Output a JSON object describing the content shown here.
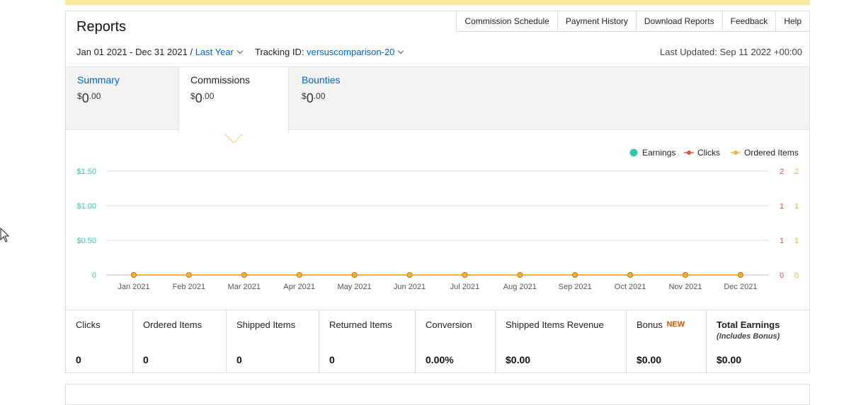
{
  "header": {
    "title": "Reports",
    "nav": [
      "Commission Schedule",
      "Payment History",
      "Download Reports",
      "Feedback",
      "Help"
    ]
  },
  "filters": {
    "date_range": "Jan 01 2021 - Dec 31 2021 /",
    "period": "Last Year",
    "tracking_label": "Tracking ID:",
    "tracking_id": "versuscomparison-20",
    "last_updated": "Last Updated: Sep 11 2022 +00:00"
  },
  "tabs": [
    {
      "label": "Summary",
      "currency": "$",
      "whole": "0",
      "cents": ".00"
    },
    {
      "label": "Commissions",
      "currency": "$",
      "whole": "0",
      "cents": ".00"
    },
    {
      "label": "Bounties",
      "currency": "$",
      "whole": "0",
      "cents": ".00"
    }
  ],
  "chart_data": {
    "type": "line",
    "categories": [
      "Jan 2021",
      "Feb 2021",
      "Mar 2021",
      "Apr 2021",
      "May 2021",
      "Jun 2021",
      "Jul 2021",
      "Aug 2021",
      "Sep 2021",
      "Oct 2021",
      "Nov 2021",
      "Dec 2021"
    ],
    "series": [
      {
        "name": "Earnings",
        "values": [
          0,
          0,
          0,
          0,
          0,
          0,
          0,
          0,
          0,
          0,
          0,
          0
        ],
        "color": "#3fc1b0"
      },
      {
        "name": "Clicks",
        "values": [
          0,
          0,
          0,
          0,
          0,
          0,
          0,
          0,
          0,
          0,
          0,
          0
        ],
        "color": "#d9553f"
      },
      {
        "name": "Ordered Items",
        "values": [
          0,
          0,
          0,
          0,
          0,
          0,
          0,
          0,
          0,
          0,
          0,
          0
        ],
        "color": "#f0b33a"
      }
    ],
    "y_left_ticks": [
      "0",
      "$0.50",
      "$1.00",
      "$1.50"
    ],
    "y_right_ticks_1": [
      "0",
      "1",
      "1",
      "2"
    ],
    "y_right_ticks_2": [
      "0",
      "1",
      "1",
      "2"
    ],
    "ylim": [
      0,
      1.5
    ],
    "legend_position": "top-right",
    "grid": true
  },
  "stats": [
    {
      "label": "Clicks",
      "value": "0"
    },
    {
      "label": "Ordered Items",
      "value": "0"
    },
    {
      "label": "Shipped Items",
      "value": "0"
    },
    {
      "label": "Returned Items",
      "value": "0"
    },
    {
      "label": "Conversion",
      "value": "0.00%"
    },
    {
      "label": "Shipped Items Revenue",
      "value": "$0.00"
    },
    {
      "label": "Bonus",
      "badge": "NEW",
      "value": "$0.00"
    },
    {
      "label": "Total Earnings",
      "sub": "(Includes Bonus)",
      "value": "$0.00"
    }
  ],
  "colors": {
    "link": "#0066c0",
    "earnings": "#3fc1b0",
    "clicks": "#d9553f",
    "ordered": "#f0b33a",
    "banner": "#fde8a6"
  }
}
